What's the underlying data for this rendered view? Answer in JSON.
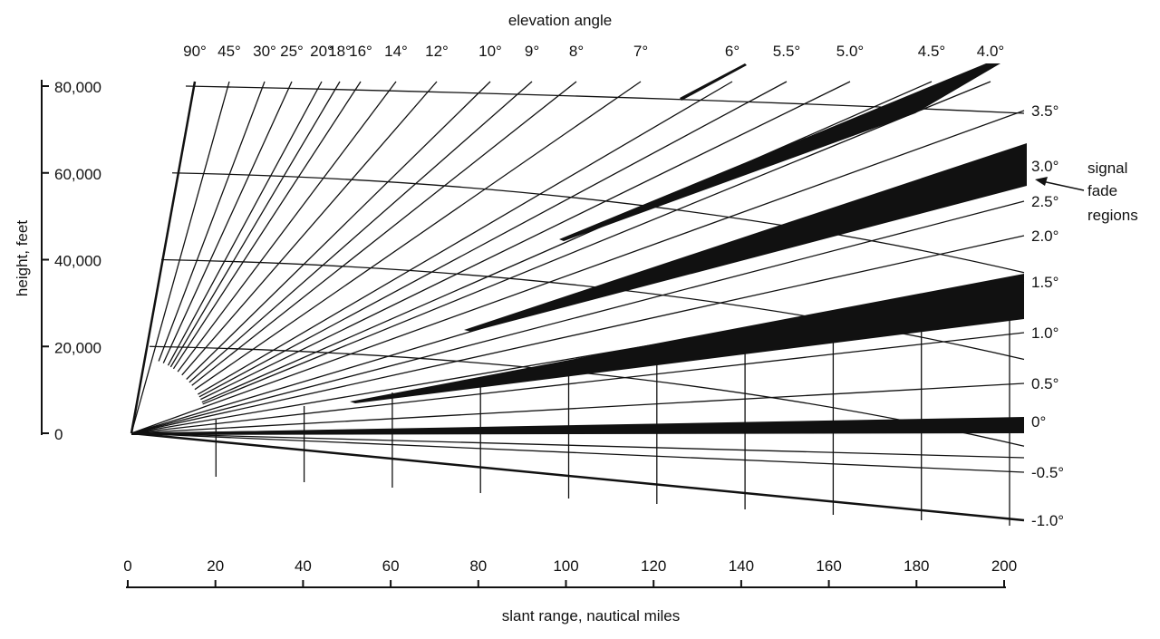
{
  "title_top": "elevation angle",
  "y_axis_label": "height, feet",
  "x_axis_label": "slant range, nautical miles",
  "legend_note": [
    "signal",
    "fade",
    "regions"
  ],
  "height_ticks": [
    "0",
    "20,000",
    "40,000",
    "60,000",
    "80,000"
  ],
  "height_values": [
    0,
    20000,
    40000,
    60000,
    80000
  ],
  "range_ticks": [
    "0",
    "20",
    "40",
    "60",
    "80",
    "100",
    "120",
    "140",
    "160",
    "180",
    "200"
  ],
  "top_angles": [
    {
      "label": "90°",
      "deg": 90
    },
    {
      "label": "45°",
      "deg": 45
    },
    {
      "label": "30°",
      "deg": 30
    },
    {
      "label": "25°",
      "deg": 25
    },
    {
      "label": "20°",
      "deg": 20
    },
    {
      "label": "18°",
      "deg": 18
    },
    {
      "label": "16°",
      "deg": 16
    },
    {
      "label": "14°",
      "deg": 14
    },
    {
      "label": "12°",
      "deg": 12
    },
    {
      "label": "10°",
      "deg": 10
    },
    {
      "label": "9°",
      "deg": 9
    },
    {
      "label": "8°",
      "deg": 8
    },
    {
      "label": "7°",
      "deg": 7
    },
    {
      "label": "6°",
      "deg": 6
    },
    {
      "label": "5.5°",
      "deg": 5.5
    },
    {
      "label": "5.0°",
      "deg": 5.0
    },
    {
      "label": "4.5°",
      "deg": 4.5
    },
    {
      "label": "4.0°",
      "deg": 4.0
    }
  ],
  "right_angles": [
    {
      "label": "3.5°",
      "deg": 3.5
    },
    {
      "label": "3.0°",
      "deg": 3.0
    },
    {
      "label": "2.5°",
      "deg": 2.5
    },
    {
      "label": "2.0°",
      "deg": 2.0
    },
    {
      "label": "1.5°",
      "deg": 1.5
    },
    {
      "label": "1.0°",
      "deg": 1.0
    },
    {
      "label": "0.5°",
      "deg": 0.5
    },
    {
      "label": "0°",
      "deg": 0
    },
    {
      "label": "-0.5°",
      "deg": -0.5
    },
    {
      "label": "-1.0°",
      "deg": -1.0
    }
  ]
}
